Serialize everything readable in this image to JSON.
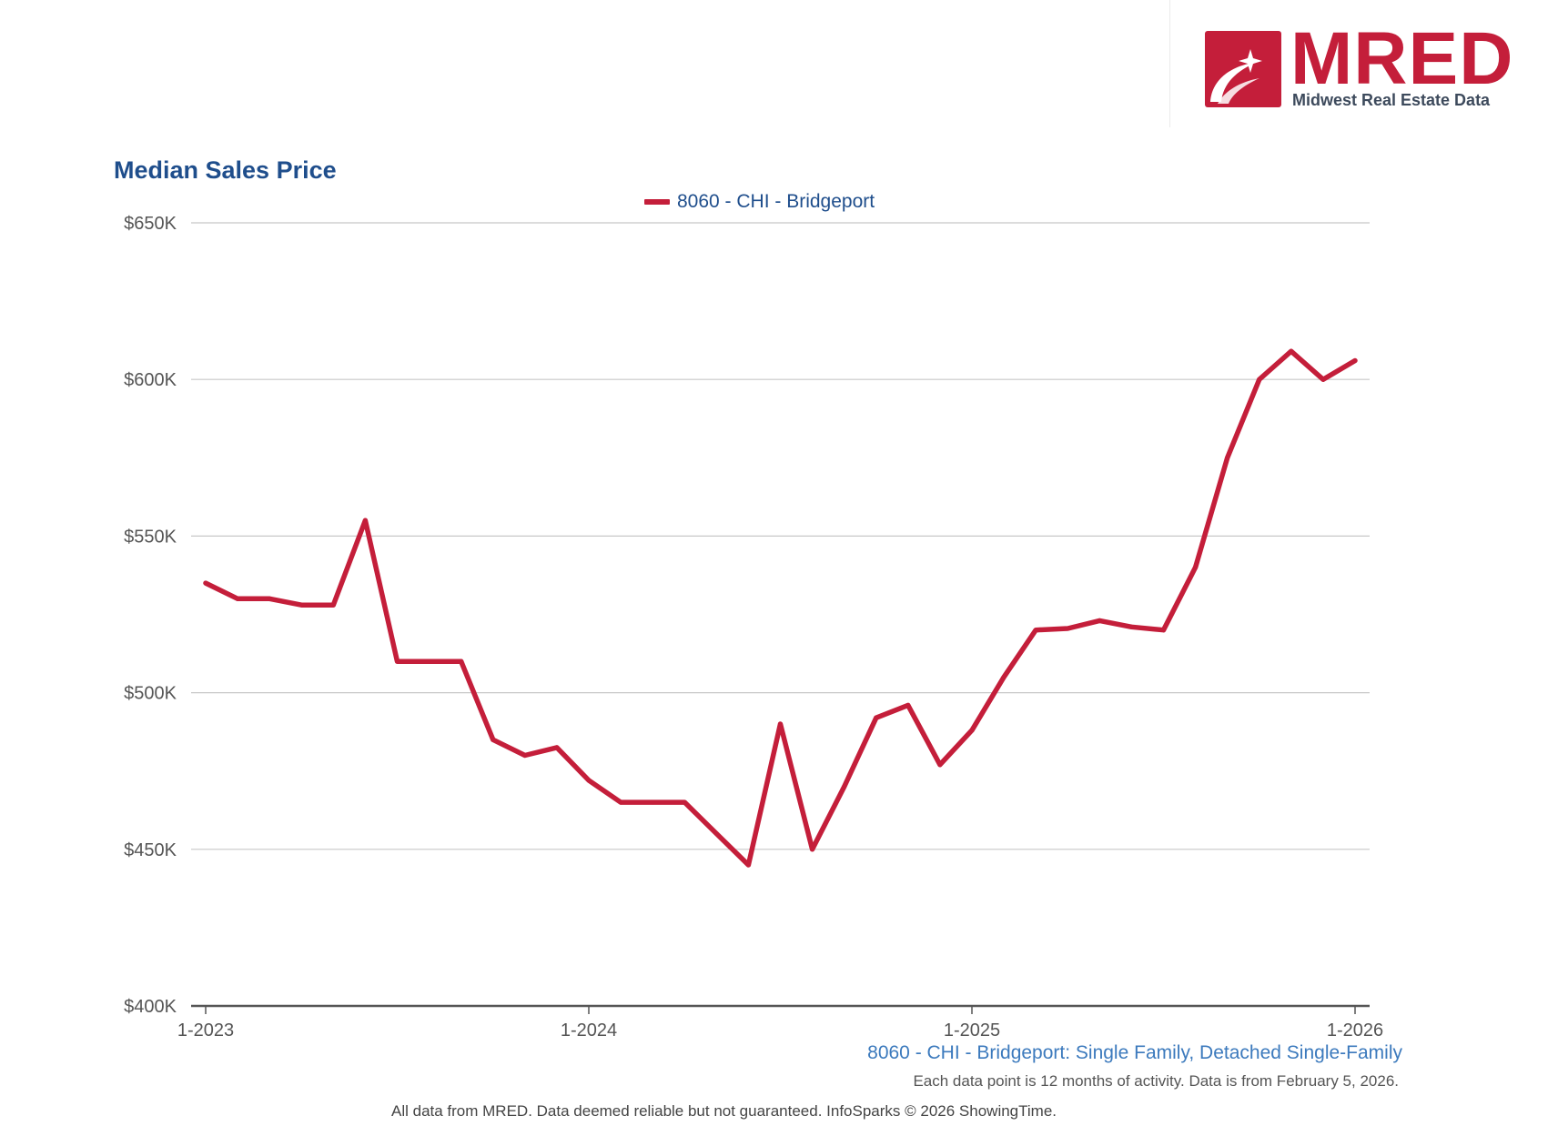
{
  "logo": {
    "wordmark": "MRED",
    "subtitle": "Midwest Real Estate Data",
    "brand_color": "#c41e3a"
  },
  "chart_data": {
    "type": "line",
    "title": "Median Sales Price",
    "legend": [
      "8060 - CHI - Bridgeport"
    ],
    "legend_position": "top-center",
    "xlabel": "",
    "ylabel": "",
    "x_tick_labels": [
      "1-2023",
      "1-2024",
      "1-2025",
      "1-2026"
    ],
    "y_tick_labels": [
      "$400K",
      "$450K",
      "$500K",
      "$550K",
      "$600K",
      "$650K"
    ],
    "y_tick_values": [
      400000,
      450000,
      500000,
      550000,
      600000,
      650000
    ],
    "ylim": [
      400000,
      650000
    ],
    "x_months": 37,
    "grid": true,
    "series": [
      {
        "name": "8060 - CHI - Bridgeport",
        "color": "#c41e3a",
        "x": [
          "1-2023",
          "2-2023",
          "3-2023",
          "4-2023",
          "5-2023",
          "6-2023",
          "7-2023",
          "8-2023",
          "9-2023",
          "10-2023",
          "11-2023",
          "12-2023",
          "1-2024",
          "2-2024",
          "3-2024",
          "4-2024",
          "5-2024",
          "6-2024",
          "7-2024",
          "8-2024",
          "9-2024",
          "10-2024",
          "11-2024",
          "12-2024",
          "1-2025",
          "2-2025",
          "3-2025",
          "4-2025",
          "5-2025",
          "6-2025",
          "7-2025",
          "8-2025",
          "9-2025",
          "10-2025",
          "11-2025",
          "12-2025",
          "1-2026"
        ],
        "values": [
          535000,
          530000,
          530000,
          528000,
          528000,
          555000,
          510000,
          510000,
          510000,
          485000,
          480000,
          482500,
          472000,
          465000,
          465000,
          465000,
          455000,
          445000,
          490000,
          450000,
          470000,
          492000,
          496000,
          477000,
          488000,
          505000,
          520000,
          520500,
          523000,
          521000,
          520000,
          540000,
          575000,
          600000,
          609000,
          600000,
          606000
        ]
      }
    ]
  },
  "captions": {
    "series_caption": "8060 - CHI - Bridgeport: Single Family, Detached Single-Family",
    "data_note": "Each data point is 12 months of activity. Data is from February 5, 2026.",
    "footer": "All data from MRED. Data deemed reliable but not guaranteed. InfoSparks © 2026 ShowingTime."
  }
}
